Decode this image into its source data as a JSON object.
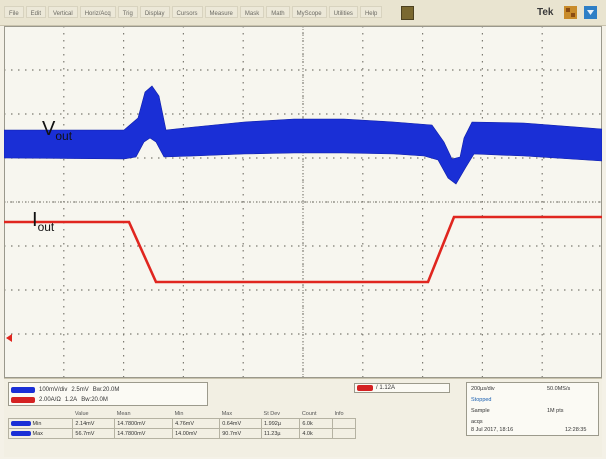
{
  "toolbar": {
    "menu_items": [
      "File",
      "Edit",
      "Vertical",
      "Horiz/Acq",
      "Trig",
      "Display",
      "Cursors",
      "Measure",
      "Mask",
      "Math",
      "MyScope",
      "Utilities",
      "Help"
    ],
    "brand": "Tek",
    "run_color": "#7a6830"
  },
  "waveform_labels": {
    "vout_main": "V",
    "vout_sub": "out",
    "iout_main": "I",
    "iout_sub": "out"
  },
  "channels": {
    "ch1": {
      "color": "#1a2fd6",
      "scale": "100mV/div",
      "extra": "2.5mV",
      "bw": "Bw:20.0M"
    },
    "ch4": {
      "color": "#d42222",
      "scale": "2.00A/Ω",
      "extra": "1.2A",
      "bw": "Bw:20.0M"
    }
  },
  "trigger": {
    "readout": "/ 1.12A"
  },
  "acquisition": {
    "timebase": "200µs/div",
    "sample_rate": "50.0MS/s",
    "mode": "Sample",
    "record": "1M pts",
    "run_state": "Stopped",
    "acqs": "acqs",
    "date": "8 Jul 2017, 18:16",
    "time": "12:28:35"
  },
  "measurements": {
    "headers": [
      "",
      "Value",
      "Mean",
      "Min",
      "Max",
      "St Dev",
      "Count",
      "Info"
    ],
    "rows": [
      {
        "label": "Min",
        "values": [
          "2.14mV",
          "14.7800mV",
          "4.76mV",
          "0.64mV",
          "1.992µ",
          "6.0k"
        ]
      },
      {
        "label": "Max",
        "values": [
          "56.7mV",
          "14.7800mV",
          "14.00mV",
          "90.7mV",
          "11.23µ",
          "4.0k"
        ]
      }
    ]
  },
  "colors": {
    "vout_trace": "#1a2fd6",
    "iout_trace": "#e0261f",
    "grid": "#7d7b72"
  }
}
